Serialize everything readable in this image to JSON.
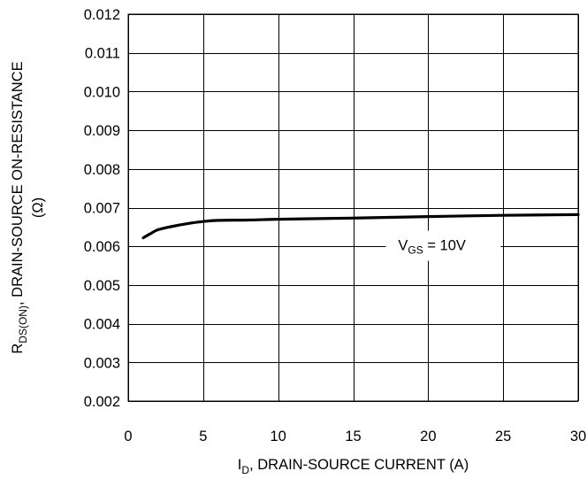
{
  "chart_data": {
    "type": "line",
    "title": "",
    "xlabel": {
      "main": "I",
      "sub": "D",
      "rest": ", DRAIN-SOURCE CURRENT (A)"
    },
    "ylabel": {
      "main": "R",
      "sub": "DS(ON)",
      "rest": ", DRAIN-SOURCE ON-RESISTANCE",
      "unit": "(Ω)"
    },
    "xlim": [
      0,
      30
    ],
    "ylim": [
      0.002,
      0.012
    ],
    "xticks": [
      0,
      5,
      10,
      15,
      20,
      25,
      30
    ],
    "xtick_labels": [
      "0",
      "5",
      "10",
      "15",
      "20",
      "25",
      "30"
    ],
    "yticks": [
      0.002,
      0.003,
      0.004,
      0.005,
      0.006,
      0.007,
      0.008,
      0.009,
      0.01,
      0.011,
      0.012
    ],
    "ytick_labels": [
      "0.002",
      "0.003",
      "0.004",
      "0.005",
      "0.006",
      "0.007",
      "0.008",
      "0.009",
      "0.010",
      "0.011",
      "0.012"
    ],
    "grid": true,
    "series": [
      {
        "x": [
          1,
          1.5,
          2,
          3,
          4,
          5,
          6,
          8,
          10,
          15,
          20,
          25,
          30
        ],
        "y": [
          0.00622,
          0.00633,
          0.00643,
          0.00652,
          0.00659,
          0.00664,
          0.00667,
          0.00668,
          0.0067,
          0.00673,
          0.00677,
          0.0068,
          0.00682
        ],
        "color": "#000000"
      }
    ],
    "annotation": {
      "main": "V",
      "sub": "GS",
      "rest": " = 10V",
      "x": 18,
      "y": 0.0059
    }
  }
}
